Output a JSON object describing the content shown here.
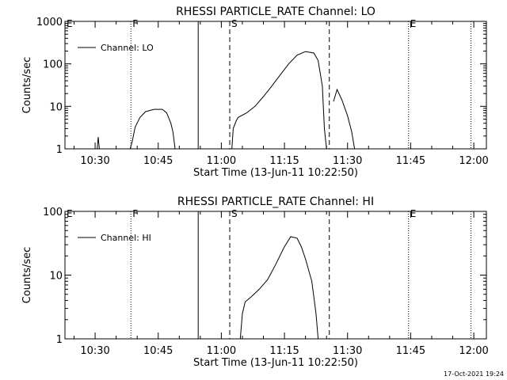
{
  "footer_timestamp": "17-Oct-2021 19:24",
  "chart_data": [
    {
      "type": "line",
      "title": "RHESSI PARTICLE_RATE Channel: LO",
      "xlabel": "Start Time (13-Jun-11 10:22:50)",
      "ylabel": "Counts/sec",
      "yscale": "log",
      "ylim": [
        1,
        1000
      ],
      "y_ticks": [
        {
          "v": 1,
          "label": "1"
        },
        {
          "v": 10,
          "label": "10"
        },
        {
          "v": 100,
          "label": "100"
        },
        {
          "v": 1000,
          "label": "1000"
        }
      ],
      "xlim": [
        "10:22:50",
        "12:03:00"
      ],
      "x_ticks": [
        "10:30",
        "10:45",
        "11:00",
        "11:15",
        "11:30",
        "11:45",
        "12:00"
      ],
      "legend": {
        "placement": "top-left",
        "entries": [
          "Channel: LO"
        ]
      },
      "series": [
        {
          "name": "Channel: LO",
          "segments": [
            [
              [
                "10:30:30",
                1.0
              ],
              [
                "10:30:45",
                1.9
              ],
              [
                "10:31:00",
                1.0
              ]
            ],
            [
              [
                "10:38:20",
                1.0
              ],
              [
                "10:38:50",
                1.5
              ],
              [
                "10:39:30",
                3.2
              ],
              [
                "10:40:40",
                5.5
              ],
              [
                "10:42:00",
                7.5
              ],
              [
                "10:44:00",
                8.5
              ],
              [
                "10:46:00",
                8.5
              ],
              [
                "10:47:00",
                7.0
              ],
              [
                "10:48:00",
                4.0
              ],
              [
                "10:48:30",
                2.5
              ],
              [
                "10:49:00",
                1.0
              ]
            ],
            [
              [
                "11:02:30",
                1.0
              ],
              [
                "11:02:50",
                3.0
              ],
              [
                "11:03:30",
                4.5
              ],
              [
                "11:04:00",
                5.5
              ],
              [
                "11:06:00",
                7.0
              ],
              [
                "11:08:00",
                10.0
              ],
              [
                "11:10:00",
                17.0
              ],
              [
                "11:12:00",
                30.0
              ],
              [
                "11:14:00",
                55.0
              ],
              [
                "11:16:00",
                100.0
              ],
              [
                "11:18:00",
                160.0
              ],
              [
                "11:20:00",
                195.0
              ],
              [
                "11:22:00",
                180.0
              ],
              [
                "11:23:00",
                120.0
              ],
              [
                "11:24:00",
                30.0
              ],
              [
                "11:24:30",
                3.0
              ],
              [
                "11:25:00",
                1.0
              ]
            ],
            [
              [
                "11:26:40",
                13.0
              ],
              [
                "11:27:30",
                25.0
              ],
              [
                "11:28:40",
                14.0
              ],
              [
                "11:30:00",
                6.0
              ],
              [
                "11:31:00",
                2.5
              ],
              [
                "11:31:40",
                1.0
              ]
            ]
          ]
        }
      ],
      "vertical_markers": [
        {
          "label": "E",
          "time": "10:22:50",
          "style": "solid"
        },
        {
          "label": "F",
          "time": "10:38:30",
          "style": "dotted"
        },
        {
          "label": "",
          "time": "10:54:30",
          "style": "solid"
        },
        {
          "label": "S",
          "time": "11:02:00",
          "style": "dashed"
        },
        {
          "label": "",
          "time": "11:25:40",
          "style": "dashed"
        },
        {
          "label": "E",
          "time": "11:44:30",
          "style": "dotted"
        },
        {
          "label": "",
          "time": "11:59:20",
          "style": "dotted"
        }
      ]
    },
    {
      "type": "line",
      "title": "RHESSI PARTICLE_RATE Channel: HI",
      "xlabel": "Start Time (13-Jun-11 10:22:50)",
      "ylabel": "Counts/sec",
      "yscale": "log",
      "ylim": [
        1,
        100
      ],
      "y_ticks": [
        {
          "v": 1,
          "label": "1"
        },
        {
          "v": 10,
          "label": "10"
        },
        {
          "v": 100,
          "label": "100"
        }
      ],
      "xlim": [
        "10:22:50",
        "12:03:00"
      ],
      "x_ticks": [
        "10:30",
        "10:45",
        "11:00",
        "11:15",
        "11:30",
        "11:45",
        "12:00"
      ],
      "legend": {
        "placement": "top-left",
        "entries": [
          "Channel: HI"
        ]
      },
      "series": [
        {
          "name": "Channel: HI",
          "segments": [
            [
              [
                "11:04:30",
                1.0
              ],
              [
                "11:05:00",
                2.5
              ],
              [
                "11:05:40",
                3.8
              ],
              [
                "11:07:00",
                4.5
              ],
              [
                "11:09:00",
                6.0
              ],
              [
                "11:11:00",
                8.5
              ],
              [
                "11:13:00",
                15.0
              ],
              [
                "11:15:00",
                28.0
              ],
              [
                "11:16:30",
                40.0
              ],
              [
                "11:18:00",
                38.0
              ],
              [
                "11:19:00",
                28.0
              ],
              [
                "11:20:00",
                18.0
              ],
              [
                "11:21:30",
                8.0
              ],
              [
                "11:22:30",
                2.5
              ],
              [
                "11:23:00",
                1.0
              ]
            ]
          ]
        }
      ],
      "vertical_markers": [
        {
          "label": "E",
          "time": "10:22:50",
          "style": "solid"
        },
        {
          "label": "F",
          "time": "10:38:30",
          "style": "dotted"
        },
        {
          "label": "",
          "time": "10:54:30",
          "style": "solid"
        },
        {
          "label": "S",
          "time": "11:02:00",
          "style": "dashed"
        },
        {
          "label": "",
          "time": "11:25:40",
          "style": "dashed"
        },
        {
          "label": "E",
          "time": "11:44:30",
          "style": "dotted"
        },
        {
          "label": "",
          "time": "11:59:20",
          "style": "dotted"
        }
      ]
    }
  ]
}
